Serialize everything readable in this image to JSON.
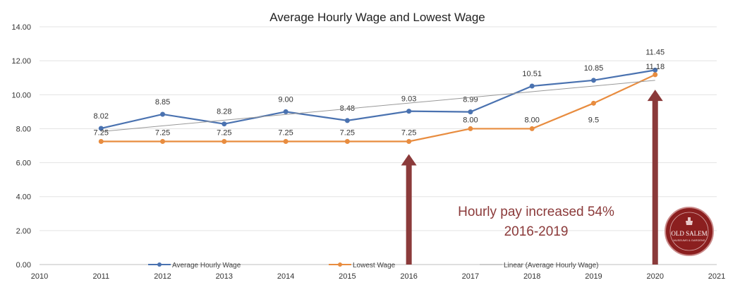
{
  "chart_data": {
    "type": "line",
    "title": "Average Hourly Wage and Lowest Wage",
    "xlabel": "",
    "ylabel": "",
    "xlim": [
      2010,
      2021
    ],
    "ylim": [
      0,
      14
    ],
    "x_ticks": [
      "2010",
      "2011",
      "2012",
      "2013",
      "2014",
      "2015",
      "2016",
      "2017",
      "2018",
      "2019",
      "2020",
      "2021"
    ],
    "y_ticks": [
      "0.00",
      "2.00",
      "4.00",
      "6.00",
      "8.00",
      "10.00",
      "12.00",
      "14.00"
    ],
    "grid": "horizontal",
    "legend_position": "bottom",
    "x": [
      2011,
      2012,
      2013,
      2014,
      2015,
      2016,
      2017,
      2018,
      2019,
      2020
    ],
    "series": [
      {
        "name": "Average Hourly Wage",
        "color": "#4a72b0",
        "values": [
          8.02,
          8.85,
          8.28,
          9.0,
          8.48,
          9.03,
          8.99,
          10.51,
          10.85,
          11.45
        ],
        "labels": [
          "8.02",
          "8.85",
          "8.28",
          "9.00",
          "8.48",
          "9.03",
          "8.99",
          "10.51",
          "10.85",
          "11.45"
        ]
      },
      {
        "name": "Lowest Wage",
        "color": "#e88c3f",
        "values": [
          7.25,
          7.25,
          7.25,
          7.25,
          7.25,
          7.25,
          8.0,
          8.0,
          9.5,
          11.18
        ],
        "labels": [
          "7.25",
          "7.25",
          "7.25",
          "7.25",
          "7.25",
          "7.25",
          "8.00",
          "8.00",
          "9.5",
          "11.18"
        ]
      },
      {
        "name": "Linear (Average Hourly Wage)",
        "color": "#999999",
        "trendline": true,
        "values": [
          7.83,
          8.17,
          8.5,
          8.84,
          9.17,
          9.51,
          9.84,
          10.18,
          10.51,
          10.85
        ]
      }
    ],
    "annotations": [
      {
        "text_lines": [
          "Hourly pay increased 54%",
          "2016-2019"
        ],
        "color": "#8b3a3a"
      }
    ],
    "arrows": [
      {
        "x": 2016,
        "from_y": 0,
        "to_y": 6.5,
        "color": "#8b3a3a"
      },
      {
        "x": 2020,
        "from_y": 0,
        "to_y": 10.3,
        "color": "#8b3a3a"
      }
    ]
  },
  "logo": {
    "line1": "OLD SALEM",
    "line2": "MUSEUMS & GARDENS"
  }
}
